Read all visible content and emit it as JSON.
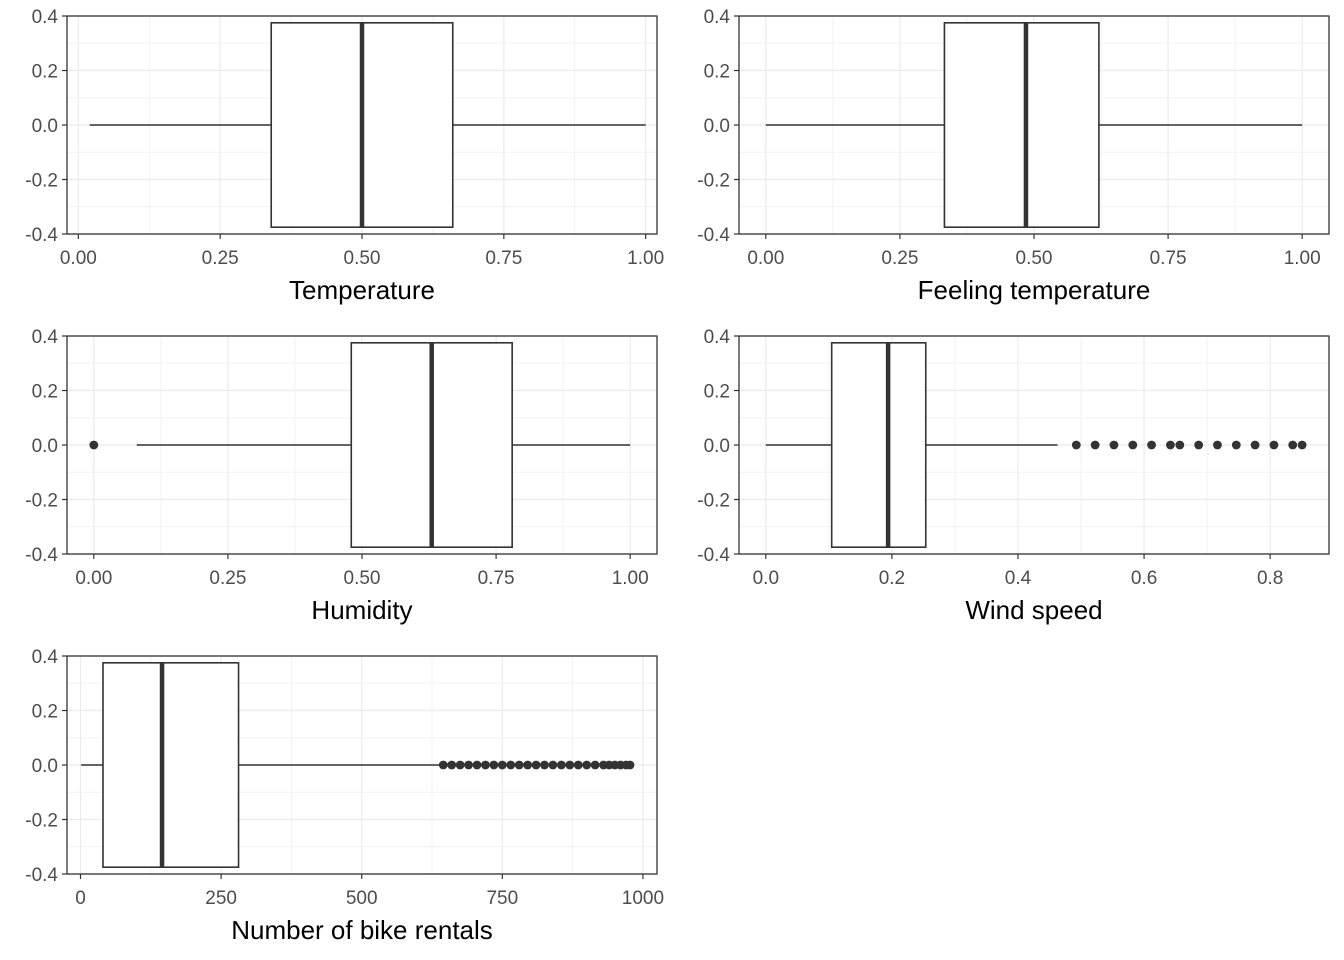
{
  "chart_data": [
    {
      "type": "box",
      "xlabel": "Temperature",
      "xlim": [
        -0.02,
        1.02
      ],
      "ylim": [
        -0.4,
        0.4
      ],
      "x_ticks": [
        0,
        0.25,
        0.5,
        0.75,
        1
      ],
      "x_tick_labels": [
        "0.00",
        "0.25",
        "0.50",
        "0.75",
        "1.00"
      ],
      "y_ticks": [
        -0.4,
        -0.2,
        0,
        0.2,
        0.4
      ],
      "y_tick_labels": [
        "-0.4",
        "-0.2",
        "0.0",
        "0.2",
        "0.4"
      ],
      "box": {
        "whisker_low": 0.02,
        "q1": 0.34,
        "median": 0.5,
        "q3": 0.66,
        "whisker_high": 1.0
      },
      "outliers": [],
      "grid": true
    },
    {
      "type": "box",
      "xlabel": "Feeling temperature",
      "xlim": [
        -0.05,
        1.05
      ],
      "ylim": [
        -0.4,
        0.4
      ],
      "x_ticks": [
        0,
        0.25,
        0.5,
        0.75,
        1
      ],
      "x_tick_labels": [
        "0.00",
        "0.25",
        "0.50",
        "0.75",
        "1.00"
      ],
      "y_ticks": [
        -0.4,
        -0.2,
        0,
        0.2,
        0.4
      ],
      "y_tick_labels": [
        "-0.4",
        "-0.2",
        "0.0",
        "0.2",
        "0.4"
      ],
      "box": {
        "whisker_low": 0.0,
        "q1": 0.333,
        "median": 0.485,
        "q3": 0.621,
        "whisker_high": 1.0
      },
      "outliers": [],
      "grid": true
    },
    {
      "type": "box",
      "xlabel": "Humidity",
      "xlim": [
        -0.05,
        1.05
      ],
      "ylim": [
        -0.4,
        0.4
      ],
      "x_ticks": [
        0,
        0.25,
        0.5,
        0.75,
        1
      ],
      "x_tick_labels": [
        "0.00",
        "0.25",
        "0.50",
        "0.75",
        "1.00"
      ],
      "y_ticks": [
        -0.4,
        -0.2,
        0,
        0.2,
        0.4
      ],
      "y_tick_labels": [
        "-0.4",
        "-0.2",
        "0.0",
        "0.2",
        "0.4"
      ],
      "box": {
        "whisker_low": 0.08,
        "q1": 0.48,
        "median": 0.63,
        "q3": 0.78,
        "whisker_high": 1.0
      },
      "outliers": [
        0.0
      ],
      "grid": true
    },
    {
      "type": "box",
      "xlabel": "Wind speed",
      "xlim": [
        -0.04254,
        0.89334
      ],
      "ylim": [
        -0.4,
        0.4
      ],
      "x_ticks": [
        0,
        0.2,
        0.4,
        0.6,
        0.8
      ],
      "x_tick_labels": [
        "0.0",
        "0.2",
        "0.4",
        "0.6",
        "0.8"
      ],
      "y_ticks": [
        -0.4,
        -0.2,
        0,
        0.2,
        0.4
      ],
      "y_tick_labels": [
        "-0.4",
        "-0.2",
        "0.0",
        "0.2",
        "0.4"
      ],
      "box": {
        "whisker_low": 0.0,
        "q1": 0.1045,
        "median": 0.194,
        "q3": 0.2537,
        "whisker_high": 0.4627
      },
      "outliers": [
        0.4925,
        0.5224,
        0.5522,
        0.5821,
        0.6119,
        0.6418,
        0.6567,
        0.6866,
        0.7164,
        0.7463,
        0.7761,
        0.806,
        0.8358,
        0.8507
      ],
      "grid": true
    },
    {
      "type": "box",
      "xlabel": "Number of bike rentals",
      "xlim": [
        -24,
        1025
      ],
      "ylim": [
        -0.4,
        0.4
      ],
      "x_ticks": [
        0,
        250,
        500,
        750,
        1000
      ],
      "x_tick_labels": [
        "0",
        "250",
        "500",
        "750",
        "1000"
      ],
      "y_ticks": [
        -0.4,
        -0.2,
        0,
        0.2,
        0.4
      ],
      "y_tick_labels": [
        "-0.4",
        "-0.2",
        "0.0",
        "0.2",
        "0.4"
      ],
      "box": {
        "whisker_low": 1,
        "q1": 40,
        "median": 145,
        "q3": 281,
        "whisker_high": 642
      },
      "outliers": [
        645,
        660,
        675,
        690,
        705,
        720,
        735,
        750,
        765,
        780,
        795,
        810,
        825,
        840,
        855,
        870,
        885,
        900,
        915,
        930,
        940,
        950,
        960,
        970,
        977
      ],
      "grid": true
    }
  ]
}
